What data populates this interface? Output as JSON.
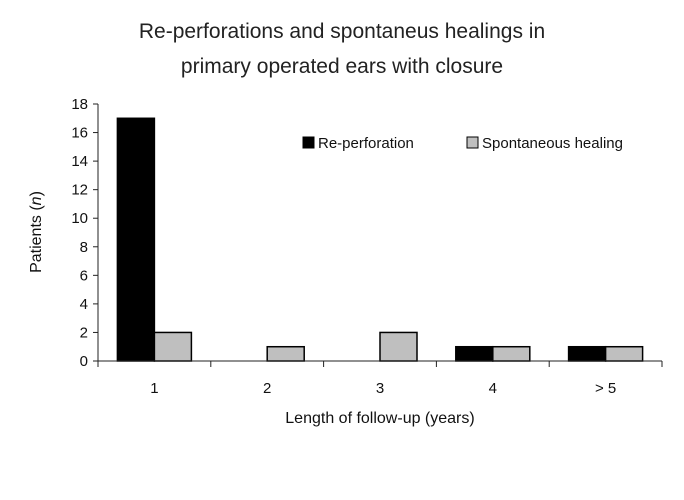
{
  "chart_data": {
    "type": "bar",
    "title": "Re-perforations and spontaneus healings in primary operated ears with closure",
    "title_lines": [
      "Re-perforations and spontaneus healings in",
      "primary operated ears with closure"
    ],
    "xlabel": "Length of follow-up (years)",
    "ylabel_main": "Patients (",
    "ylabel_italic": "n",
    "ylabel_end": ")",
    "categories": [
      "1",
      "2",
      "3",
      "4",
      "> 5"
    ],
    "series": [
      {
        "name": "Re-perforation",
        "color": "#000000",
        "values": [
          17,
          0,
          0,
          1,
          1
        ]
      },
      {
        "name": "Spontaneous healing",
        "color": "#bfbfbf",
        "values": [
          2,
          1,
          2,
          1,
          1
        ]
      }
    ],
    "ylim": [
      0,
      18
    ],
    "yticks": [
      0,
      2,
      4,
      6,
      8,
      10,
      12,
      14,
      16,
      18
    ],
    "grid": false,
    "legend_position": "top-right"
  }
}
